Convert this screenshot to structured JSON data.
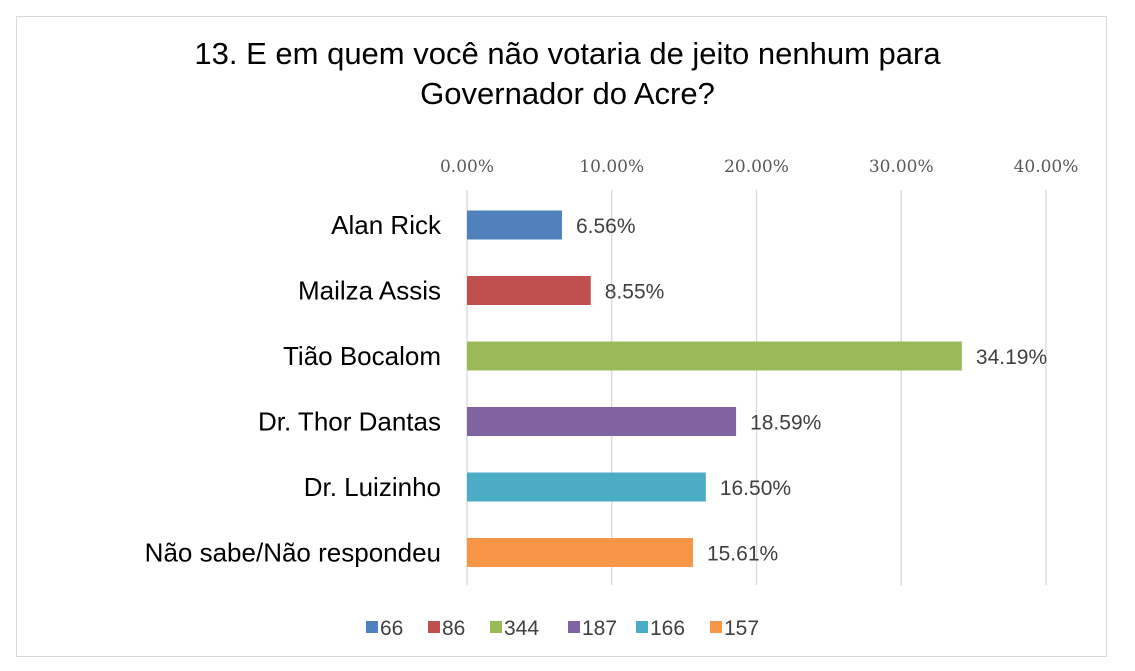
{
  "chart_data": {
    "type": "bar",
    "orientation": "horizontal",
    "title_lines": [
      "13. E em quem você não votaria de jeito nenhum para",
      "Governador do Acre?"
    ],
    "categories": [
      "Alan Rick",
      "Mailza Assis",
      "Tião Bocalom",
      "Dr. Thor Dantas",
      "Dr. Luizinho",
      "Não sabe/Não respondeu"
    ],
    "values": [
      6.56,
      8.55,
      34.19,
      18.59,
      16.5,
      15.61
    ],
    "value_labels": [
      "6.56%",
      "8.55%",
      "34.19%",
      "18.59%",
      "16.50%",
      "15.61%"
    ],
    "colors": [
      "#4f81bd",
      "#c0504d",
      "#9bbb59",
      "#8064a2",
      "#4bacc6",
      "#f79646"
    ],
    "xlim": [
      0,
      40
    ],
    "xticks": [
      0,
      10,
      20,
      30,
      40
    ],
    "xtick_labels": [
      "0.00%",
      "10.00%",
      "20.00%",
      "30.00%",
      "40.00%"
    ],
    "x_axis_position": "top",
    "grid": true,
    "legend_position": "bottom",
    "legend": [
      "66",
      "86",
      "344",
      "187",
      "166",
      "157"
    ]
  }
}
